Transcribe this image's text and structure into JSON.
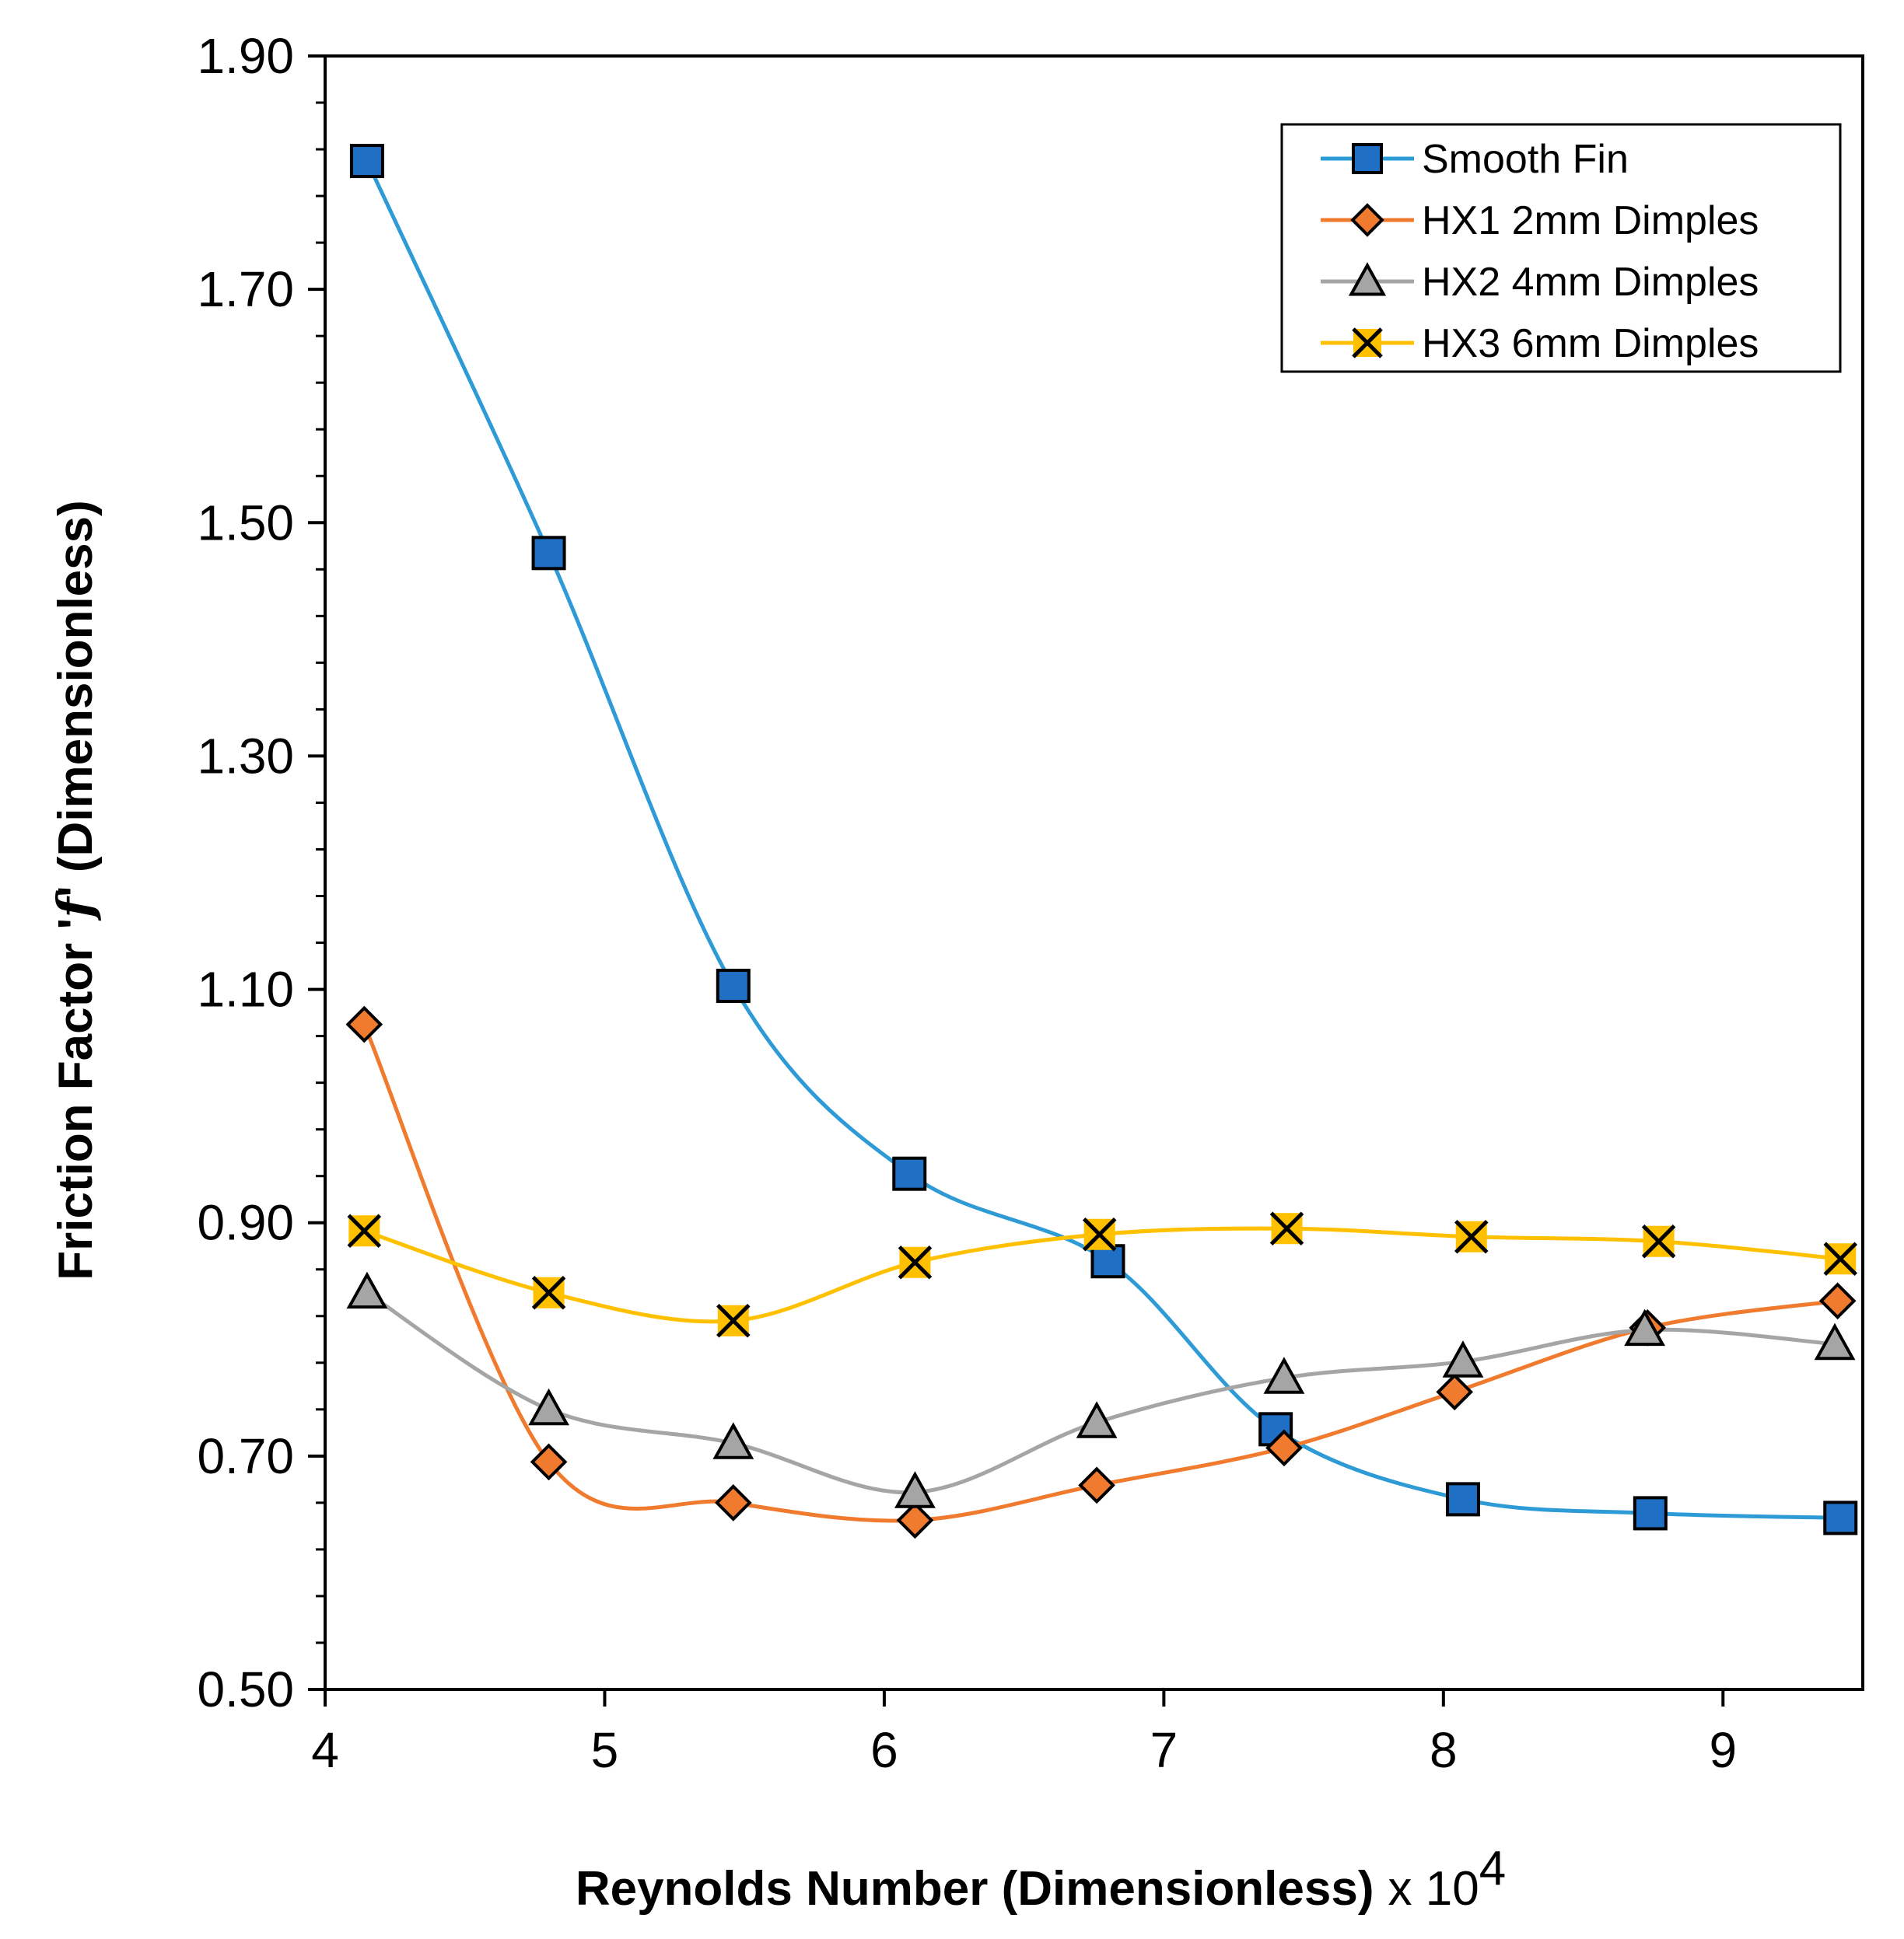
{
  "chart_data": {
    "type": "line",
    "xlabel": "Reynolds Number (Dimensionless)",
    "xlabel_suffix": "x 10",
    "xlabel_exponent": "4",
    "ylabel_prefix": "Friction Factor '",
    "ylabel_symbol": "f",
    "ylabel_suffix": "' (Dimensionless)",
    "xlim": [
      4,
      9.5
    ],
    "ylim": [
      0.5,
      1.9
    ],
    "xticks": [
      4,
      5,
      6,
      7,
      8,
      9
    ],
    "xtick_labels": [
      "4",
      "5",
      "6",
      "7",
      "8",
      "9"
    ],
    "yticks": [
      0.5,
      0.7,
      0.9,
      1.1,
      1.3,
      1.5,
      1.7,
      1.9
    ],
    "ytick_labels": [
      "0.50",
      "0.70",
      "0.90",
      "1.10",
      "1.30",
      "1.50",
      "1.70",
      "1.90"
    ],
    "grid": false,
    "legend_position": "top-right",
    "smooth": true,
    "series": [
      {
        "name": "Smooth Fin",
        "color": "#2E9BD6",
        "marker": "square",
        "marker_fill": "#1F6FC5",
        "x": [
          4.15,
          4.8,
          5.46,
          6.09,
          6.8,
          7.4,
          8.07,
          8.74,
          9.42
        ],
        "y": [
          1.81,
          1.474,
          1.103,
          0.942,
          0.867,
          0.723,
          0.663,
          0.651,
          0.647
        ]
      },
      {
        "name": "HX1 2mm Dimples",
        "color": "#F07A2E",
        "marker": "diamond",
        "marker_fill": "#F07A2E",
        "x": [
          4.14,
          4.8,
          5.46,
          6.11,
          6.76,
          7.43,
          8.04,
          8.73,
          9.41
        ],
        "y": [
          1.07,
          0.695,
          0.66,
          0.645,
          0.675,
          0.707,
          0.755,
          0.81,
          0.833
        ]
      },
      {
        "name": "HX2 4mm Dimples",
        "color": "#A5A5A5",
        "marker": "triangle",
        "marker_fill": "#A5A5A5",
        "x": [
          4.15,
          4.8,
          5.46,
          6.11,
          6.76,
          7.43,
          8.07,
          8.72,
          9.4
        ],
        "y": [
          0.84,
          0.74,
          0.711,
          0.669,
          0.729,
          0.767,
          0.781,
          0.808,
          0.796
        ]
      },
      {
        "name": "HX3 6mm Dimples",
        "color": "#FFC000",
        "marker": "x",
        "marker_fill": "#FFC000",
        "x": [
          4.14,
          4.8,
          5.46,
          6.11,
          6.77,
          7.44,
          8.1,
          8.77,
          9.42
        ],
        "y": [
          0.893,
          0.84,
          0.816,
          0.866,
          0.89,
          0.895,
          0.888,
          0.884,
          0.869
        ]
      }
    ]
  }
}
